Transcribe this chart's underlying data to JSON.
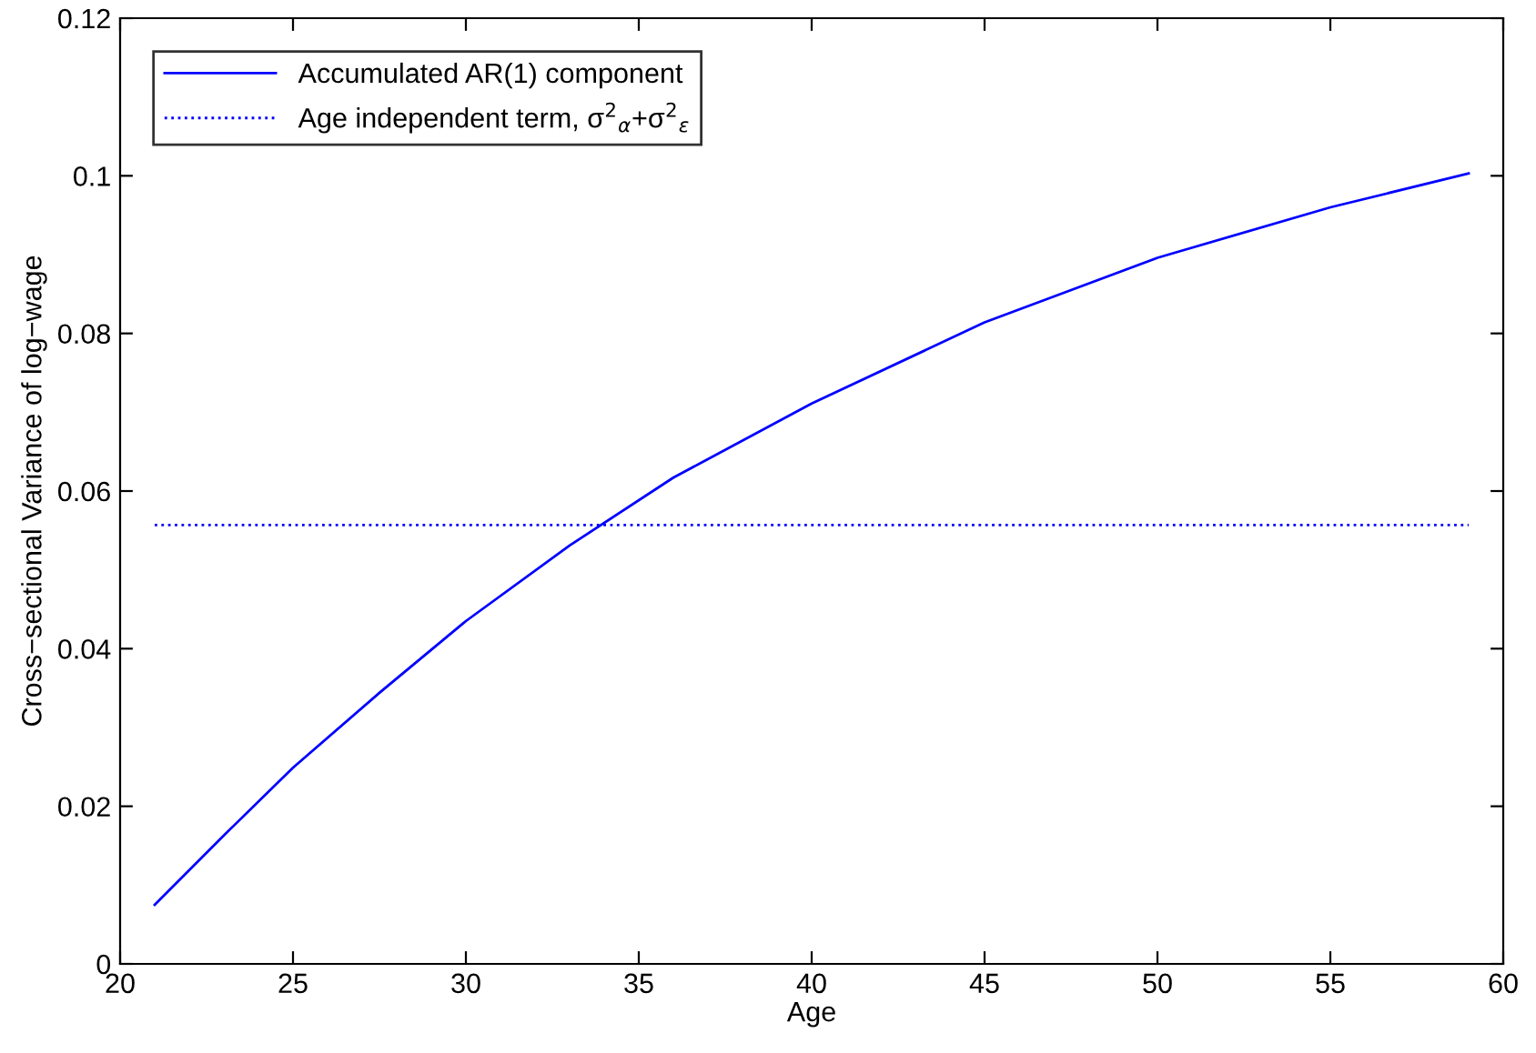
{
  "chart_data": {
    "type": "line",
    "xlabel": "Age",
    "ylabel": "Cross−sectional Variance of log−wage",
    "series": [
      {
        "name": "Accumulated AR(1) component",
        "color": "#0000ff",
        "line_style": "solid",
        "x": [
          21,
          23,
          25,
          27.5,
          30,
          33,
          36,
          40,
          45,
          50,
          55,
          59
        ],
        "values": [
          0.0075,
          0.0163,
          0.0249,
          0.0344,
          0.0435,
          0.0531,
          0.0617,
          0.0711,
          0.0814,
          0.0896,
          0.096,
          0.1003
        ]
      },
      {
        "name": "Age independent term, σ$^{2}$$_{α}$+σ$^{2}$$_{ε}$",
        "color": "#0000ff",
        "line_style": "dotted",
        "x": [
          21,
          59
        ],
        "values": [
          0.0557,
          0.0557
        ]
      }
    ],
    "xlim": [
      20,
      60
    ],
    "xticks": [
      20,
      25,
      30,
      35,
      40,
      45,
      50,
      55,
      60
    ],
    "ylim": [
      0,
      0.12
    ],
    "yticks": [
      0,
      0.02,
      0.04,
      0.06,
      0.08,
      0.1,
      0.12
    ],
    "grid": false,
    "legend": "top left",
    "marker": "none"
  }
}
